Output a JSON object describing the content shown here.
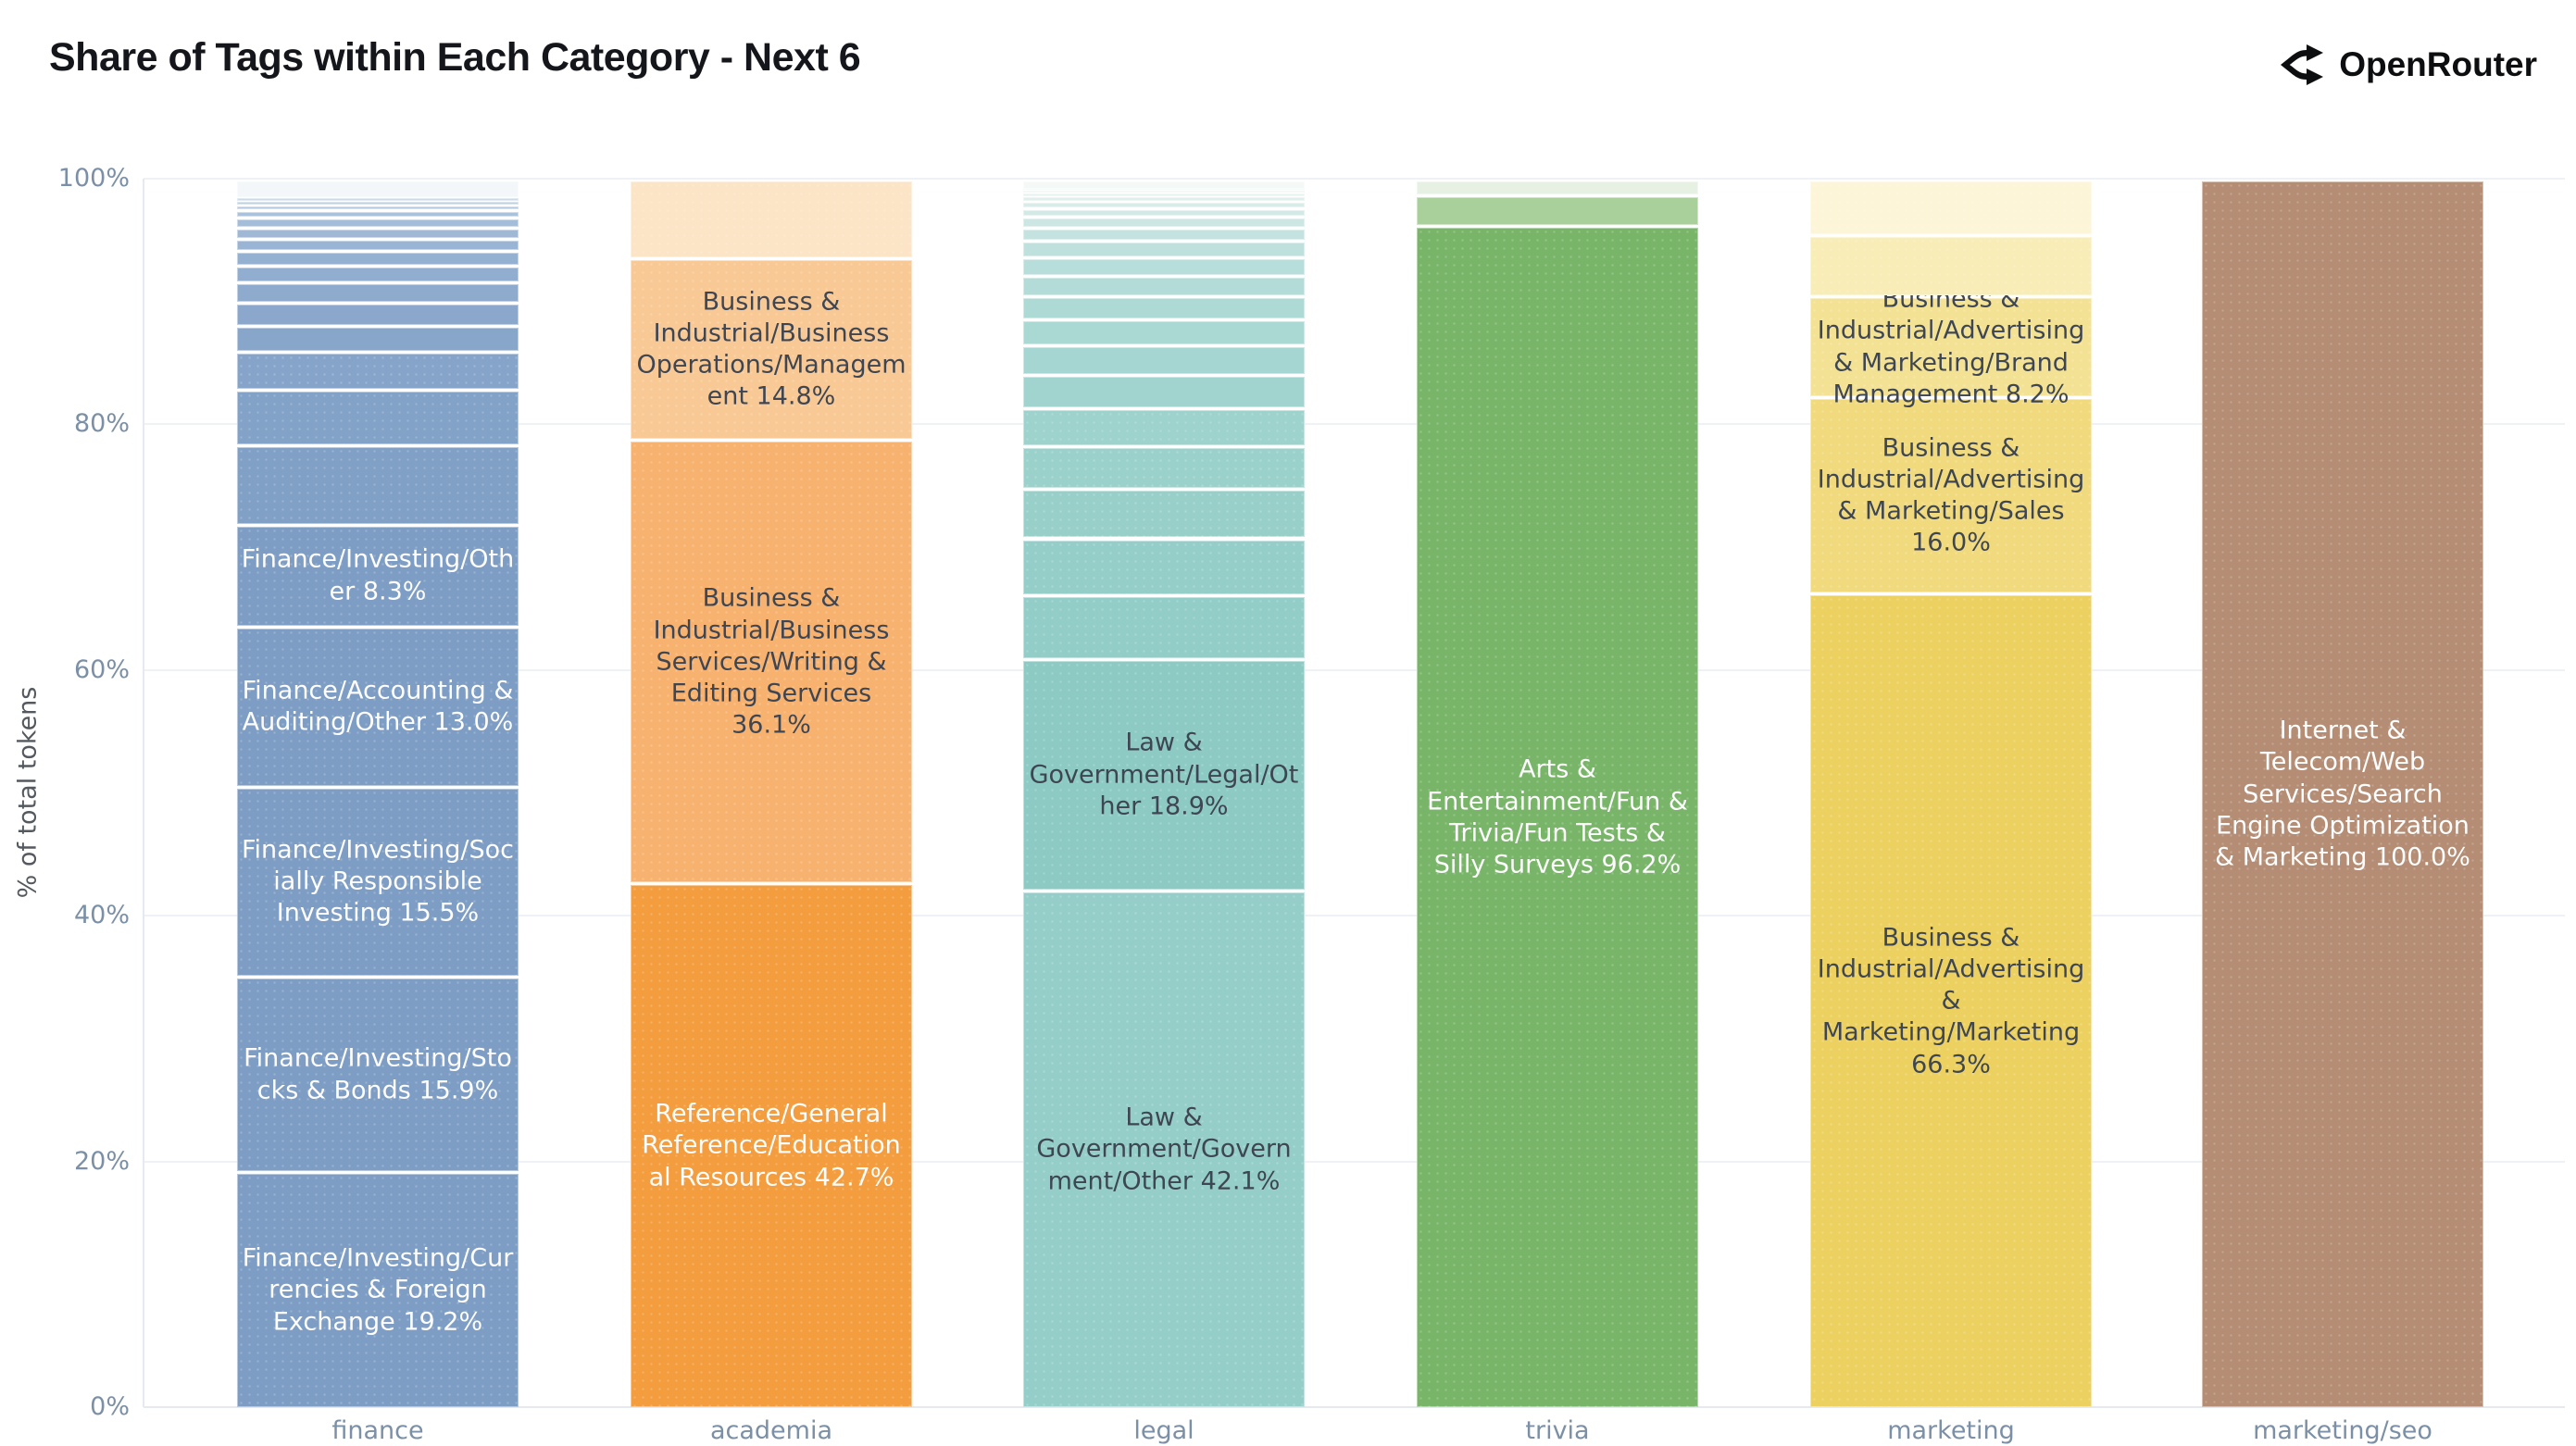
{
  "header": {
    "title": "Share of Tags within Each Category - Next 6",
    "logo_text": "OpenRouter"
  },
  "y_axis": {
    "label": "% of total tokens",
    "tick_labels": [
      "0%",
      "20%",
      "40%",
      "60%",
      "80%",
      "100%"
    ]
  },
  "x_axis": {
    "categories": [
      "finance",
      "academia",
      "legal",
      "trivia",
      "marketing",
      "marketing/seo"
    ]
  },
  "colors": {
    "finance_base": "#7e9dc4",
    "academia_base": "#f49d3f",
    "legal_base": "#8ecac4",
    "trivia_base": "#79b569",
    "marketing_base": "#ecd161",
    "marketing_seo_base": "#b48d74",
    "tick_text": "#7b90a6",
    "dark_label_text": "#3e4653",
    "light_label_text": "#fdfdfd"
  },
  "chart_data": {
    "type": "bar",
    "stacked": true,
    "percent_normalized": true,
    "grid": true,
    "legend": "none",
    "title": "Share of Tags within Each Category - Next 6",
    "xlabel": "",
    "ylabel": "% of total tokens",
    "ylim": [
      0,
      100
    ],
    "yticks": [
      {
        "pct": 0,
        "label": "0%"
      },
      {
        "pct": 20,
        "label": "20%"
      },
      {
        "pct": 40,
        "label": "40%"
      },
      {
        "pct": 60,
        "label": "60%"
      },
      {
        "pct": 80,
        "label": "80%"
      },
      {
        "pct": 100,
        "label": "100%"
      }
    ],
    "categories": [
      "finance",
      "academia",
      "legal",
      "trivia",
      "marketing",
      "marketing/seo"
    ],
    "unlabeled_segment_pcts_estimated": true,
    "bars": [
      {
        "category": "finance",
        "segments": [
          {
            "label": "Finance/Investing/Currencies & Foreign Exchange",
            "pct": 19.2,
            "color": "#7e9dc4",
            "text_color": "#fdfdfd",
            "show_label": true
          },
          {
            "label": "Finance/Investing/Stocks & Bonds",
            "pct": 15.9,
            "color": "#7e9dc4",
            "text_color": "#fdfdfd",
            "show_label": true
          },
          {
            "label": "Finance/Investing/Socially Responsible Investing",
            "pct": 15.5,
            "color": "#7e9dc4",
            "text_color": "#fdfdfd",
            "show_label": true
          },
          {
            "label": "Finance/Accounting & Auditing/Other",
            "pct": 13.0,
            "color": "#7e9dc4",
            "text_color": "#fdfdfd",
            "show_label": true
          },
          {
            "label": "Finance/Investing/Other",
            "pct": 8.3,
            "color": "#7e9dc4",
            "text_color": "#fdfdfd",
            "show_label": true
          },
          {
            "label": null,
            "pct": 6.5,
            "color": "#81a0c6",
            "show_label": false
          },
          {
            "label": null,
            "pct": 4.5,
            "color": "#83a2c7",
            "show_label": false
          },
          {
            "label": null,
            "pct": 3.1,
            "color": "#86a4c9",
            "show_label": false
          },
          {
            "label": null,
            "pct": 2.1,
            "color": "#88a6ca",
            "show_label": false
          },
          {
            "label": null,
            "pct": 1.9,
            "color": "#8ba8cc",
            "show_label": false
          },
          {
            "label": null,
            "pct": 1.6,
            "color": "#8eabce",
            "show_label": false
          },
          {
            "label": null,
            "pct": 1.4,
            "color": "#91aed0",
            "show_label": false
          },
          {
            "label": null,
            "pct": 1.2,
            "color": "#95b1d2",
            "show_label": false
          },
          {
            "label": null,
            "pct": 1.0,
            "color": "#99b4d4",
            "show_label": false
          },
          {
            "label": null,
            "pct": 0.9,
            "color": "#9eb8d6",
            "show_label": false
          },
          {
            "label": null,
            "pct": 0.8,
            "color": "#a4bdd9",
            "show_label": false
          },
          {
            "label": null,
            "pct": 0.6,
            "color": "#abc2dc",
            "show_label": false
          },
          {
            "label": null,
            "pct": 0.4,
            "color": "#b4c9e0",
            "show_label": false
          },
          {
            "label": null,
            "pct": 0.3,
            "color": "#bed1e4",
            "show_label": false
          },
          {
            "label": null,
            "pct": 0.3,
            "color": "#cbdaea",
            "show_label": false
          },
          {
            "label": null,
            "pct": 1.5,
            "color": "#f3f7fa",
            "show_label": false
          }
        ]
      },
      {
        "category": "academia",
        "segments": [
          {
            "label": "Reference/General Reference/Educational Resources",
            "pct": 42.7,
            "color": "#f49d3f",
            "text_color": "#fdfdfd",
            "show_label": true
          },
          {
            "label": "Business & Industrial/Business Services/Writing & Editing Services",
            "pct": 36.1,
            "color": "#f7b26f",
            "text_color": "#3e4653",
            "show_label": true
          },
          {
            "label": "Business & Industrial/Business Operations/Management",
            "pct": 14.8,
            "color": "#f9c995",
            "text_color": "#3e4653",
            "show_label": true
          },
          {
            "label": null,
            "pct": 6.4,
            "color": "#fce4c7",
            "show_label": false
          }
        ]
      },
      {
        "category": "legal",
        "segments": [
          {
            "label": "Law & Government/Government/Other",
            "pct": 42.1,
            "color": "#95cec8",
            "text_color": "#3e4653",
            "show_label": true
          },
          {
            "label": "Law & Government/Legal/Other",
            "pct": 18.9,
            "color": "#8ccac3",
            "text_color": "#3e4653",
            "show_label": true
          },
          {
            "label": null,
            "pct": 5.2,
            "color": "#93cdc7",
            "show_label": false
          },
          {
            "label": null,
            "pct": 4.6,
            "color": "#95cec8",
            "show_label": false
          },
          {
            "label": null,
            "pct": 4.0,
            "color": "#98cfc9",
            "show_label": false
          },
          {
            "label": null,
            "pct": 3.5,
            "color": "#9bd1cb",
            "show_label": false
          },
          {
            "label": null,
            "pct": 3.1,
            "color": "#9ed2cd",
            "show_label": false
          },
          {
            "label": null,
            "pct": 2.7,
            "color": "#a2d4cf",
            "show_label": false
          },
          {
            "label": null,
            "pct": 2.4,
            "color": "#a6d6d1",
            "show_label": false
          },
          {
            "label": null,
            "pct": 2.1,
            "color": "#aad8d3",
            "show_label": false
          },
          {
            "label": null,
            "pct": 1.9,
            "color": "#aedad6",
            "show_label": false
          },
          {
            "label": null,
            "pct": 1.7,
            "color": "#b3dcd8",
            "show_label": false
          },
          {
            "label": null,
            "pct": 1.5,
            "color": "#b8dedb",
            "show_label": false
          },
          {
            "label": null,
            "pct": 1.3,
            "color": "#bee1dd",
            "show_label": false
          },
          {
            "label": null,
            "pct": 1.1,
            "color": "#c4e3e0",
            "show_label": false
          },
          {
            "label": null,
            "pct": 0.9,
            "color": "#cbe6e3",
            "show_label": false
          },
          {
            "label": null,
            "pct": 0.7,
            "color": "#d2e9e6",
            "show_label": false
          },
          {
            "label": null,
            "pct": 0.5,
            "color": "#daece9",
            "show_label": false
          },
          {
            "label": null,
            "pct": 0.4,
            "color": "#e0efec",
            "show_label": false
          },
          {
            "label": null,
            "pct": 0.3,
            "color": "#e6f2f0",
            "show_label": false
          },
          {
            "label": null,
            "pct": 0.2,
            "color": "#ebf4f2",
            "show_label": false
          },
          {
            "label": null,
            "pct": 0.1,
            "color": "#eff6f4",
            "show_label": false
          },
          {
            "label": null,
            "pct": 0.8,
            "color": "#f4f9f8",
            "show_label": false
          }
        ]
      },
      {
        "category": "trivia",
        "segments": [
          {
            "label": "Arts & Entertainment/Fun & Trivia/Fun Tests & Silly Surveys",
            "pct": 96.2,
            "color": "#79b569",
            "text_color": "#fdfdfd",
            "show_label": true
          },
          {
            "label": null,
            "pct": 2.5,
            "color": "#a9cf9b",
            "show_label": false
          },
          {
            "label": null,
            "pct": 1.3,
            "color": "#e7f1e3",
            "show_label": false
          }
        ]
      },
      {
        "category": "marketing",
        "segments": [
          {
            "label": "Business & Industrial/Advertising & Marketing/Marketing",
            "pct": 66.3,
            "color": "#ecd161",
            "text_color": "#3e4653",
            "show_label": true
          },
          {
            "label": "Business & Industrial/Advertising & Marketing/Sales",
            "pct": 16.0,
            "color": "#f0da7d",
            "text_color": "#3e4653",
            "show_label": true
          },
          {
            "label": "Business & Industrial/Advertising & Marketing/Brand Management",
            "pct": 8.2,
            "color": "#f4e294",
            "text_color": "#3e4653",
            "show_label": true
          },
          {
            "label": null,
            "pct": 5.0,
            "color": "#f8ecb7",
            "show_label": false
          },
          {
            "label": null,
            "pct": 4.5,
            "color": "#fdf5d8",
            "show_label": false
          }
        ]
      },
      {
        "category": "marketing/seo",
        "segments": [
          {
            "label": "Internet & Telecom/Web Services/Search Engine Optimization & Marketing",
            "pct": 100.0,
            "color": "#b48d74",
            "text_color": "#fdfdfd",
            "show_label": true
          }
        ]
      }
    ]
  }
}
